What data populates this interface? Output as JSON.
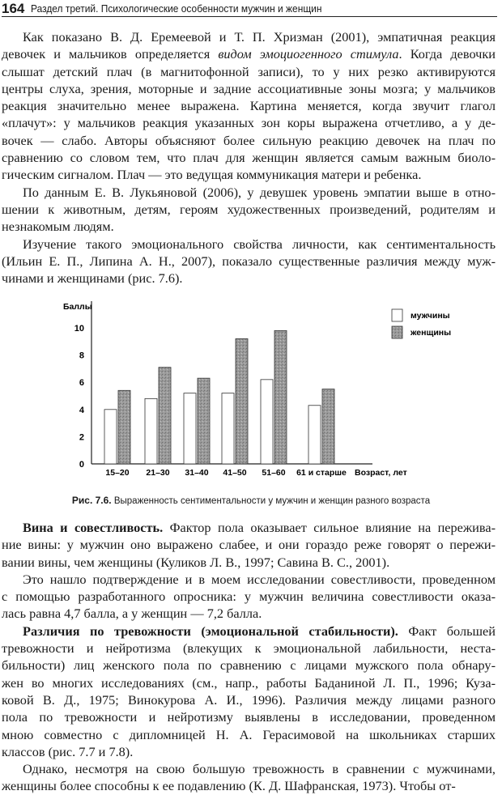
{
  "header": {
    "page_number": "164",
    "title": "Раздел третий. Психологические особенности мужчин и женщин"
  },
  "top_paragraphs": [
    [
      [
        {
          "t": "Как показано В. Д. Еремеевой и Т. П. Хризман (2001), эмпатичная реакция"
        }
      ],
      [
        {
          "t": "девочек и мальчиков определяется "
        },
        {
          "t": "видом эмоциогенного стимула",
          "s": "i"
        },
        {
          "t": ". Когда девочки"
        }
      ],
      [
        {
          "t": "слышат детский плач (в магнитофонной записи), то у них резко активируются"
        }
      ],
      [
        {
          "t": "центры слуха, зрения, моторные и задние ассоциативные зоны мозга; у мальчиков"
        }
      ],
      [
        {
          "t": "реакция значительно менее выражена. Картина меняется, когда звучит глагол"
        }
      ],
      [
        {
          "t": "«плачут»: у мальчиков реакция указанных зон коры выражена отчетливо, а у де-"
        }
      ],
      [
        {
          "t": "вочек — слабо. Авторы объясняют более сильную реакцию девочек на плач по"
        }
      ],
      [
        {
          "t": "сравнению со словом тем, что плач для женщин является самым важным биоло-"
        }
      ],
      [
        {
          "t": "гическим сигналом. Плач — это ведущая коммуникация матери и ребенка."
        }
      ]
    ],
    [
      [
        {
          "t": "По данным Е. В. Лукьяновой (2006), у девушек уровень эмпатии выше в отно-"
        }
      ],
      [
        {
          "t": "шении к животным, детям, героям художественных произведений, родителям и"
        }
      ],
      [
        {
          "t": "незнакомым людям."
        }
      ]
    ],
    [
      [
        {
          "t": "Изучение такого эмоционального свойства личности, как сентиментальность"
        }
      ],
      [
        {
          "t": "(Ильин Е. П., Липина А. Н., 2007), показало существенные различия между муж-"
        }
      ],
      [
        {
          "t": "чинами и женщинами (рис. 7.6)."
        }
      ]
    ]
  ],
  "chart_data": {
    "type": "bar",
    "ylabel": "Баллы",
    "xlabel": "Возраст, лет",
    "categories": [
      "15–20",
      "21–30",
      "31–40",
      "41–50",
      "51–60",
      "61 и старше"
    ],
    "ylim": [
      0,
      10
    ],
    "yticks": [
      "0",
      "2",
      "4",
      "6",
      "8",
      "10"
    ],
    "grid": false,
    "legend_placement": "top-right",
    "series": [
      {
        "name": "мужчины",
        "color": "#ffffff",
        "values": [
          4.0,
          4.8,
          5.2,
          5.2,
          6.2,
          4.3
        ]
      },
      {
        "name": "женщины",
        "color": "#9a9a9a",
        "values": [
          5.4,
          7.1,
          6.3,
          9.2,
          9.8,
          5.5
        ]
      }
    ]
  },
  "figure_caption": {
    "label": "Рис. 7.6.",
    "text": " Выраженность сентиментальности у мужчин и женщин разного возраста"
  },
  "bottom_paragraphs": [
    [
      [
        {
          "t": "Вина и совестливость.",
          "s": "b"
        },
        {
          "t": " Фактор пола оказывает сильное влияние на пережива-"
        }
      ],
      [
        {
          "t": "ние вины: у мужчин оно выражено слабее, и они гораздо реже говорят о пережи-"
        }
      ],
      [
        {
          "t": "вании вины, чем женщины (Куликов Л. В., 1997; Савина В. С., 2001)."
        }
      ]
    ],
    [
      [
        {
          "t": "Это нашло подтверждение и в моем исследовании совестливости, проведенном"
        }
      ],
      [
        {
          "t": "с помощью разработанного опросника: у мужчин величина совестливости оказа-"
        }
      ],
      [
        {
          "t": "лась равна 4,7 балла, а у женщин — 7,2 балла."
        }
      ]
    ],
    [
      [
        {
          "t": "Различия по тревожности (эмоциональной стабильности).",
          "s": "b"
        },
        {
          "t": " Факт большей"
        }
      ],
      [
        {
          "t": "тревожности и нейротизма (влекущих к эмоциональной лабильности, неста-"
        }
      ],
      [
        {
          "t": "бильности) лиц женского пола по сравнению с лицами мужского пола обнару-"
        }
      ],
      [
        {
          "t": "жен во многих исследованиях (см., напр., работы Баданиной Л. П., 1996; Куза-"
        }
      ],
      [
        {
          "t": "ковой В. Д., 1975; Винокурова А. И., 1996). Различия между лицами разного"
        }
      ],
      [
        {
          "t": "пола по тревожности и нейротизму выявлены в исследовании, проведенном"
        }
      ],
      [
        {
          "t": "мною совместно с дипломницей Н. А. Герасимовой на школьниках старших"
        }
      ],
      [
        {
          "t": "классов (рис. 7.7 и 7.8)."
        }
      ]
    ],
    [
      [
        {
          "t": "Однако, несмотря на свою большую тревожность в сравнении с мужчинами,"
        }
      ],
      [
        {
          "t": "женщины более способны к ее подавлению (К. Д. Шафранская, 1973). Чтобы от-"
        }
      ]
    ]
  ]
}
